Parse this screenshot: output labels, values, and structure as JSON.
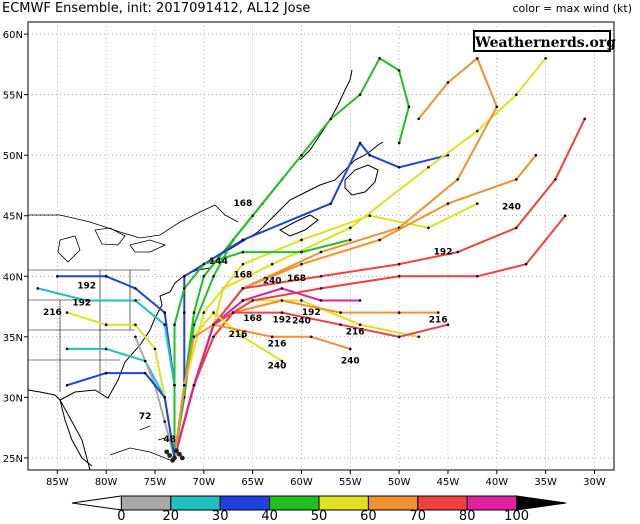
{
  "header": {
    "title": "ECMWF Ensemble, init: 2017091412, AL12 Jose",
    "subtitle_right": "color = max wind (kt)"
  },
  "brand": {
    "label": "Weathernerds.org"
  },
  "axes": {
    "lat_labels": [
      "60N",
      "55N",
      "50N",
      "45N",
      "40N",
      "35N",
      "30N",
      "25N"
    ],
    "lon_labels": [
      "85W",
      "80W",
      "75W",
      "70W",
      "65W",
      "60W",
      "55W",
      "50W",
      "45W",
      "40W",
      "35W",
      "30W"
    ]
  },
  "colorbar": {
    "ticks": [
      "0",
      "20",
      "30",
      "40",
      "50",
      "60",
      "70",
      "80",
      "100"
    ],
    "colors": [
      "#ffffff",
      "#a8a8a8",
      "#20c0c0",
      "#2040e0",
      "#20c020",
      "#e0e020",
      "#f09030",
      "#f04040",
      "#e020a0",
      "#000000"
    ]
  },
  "map": {
    "lon_range": [
      -88,
      -28
    ],
    "lat_range": [
      24,
      61
    ],
    "grid": true
  },
  "forecast_hour_labels": [
    {
      "text": "216",
      "lon": -85.5,
      "lat": 36.8
    },
    {
      "text": "192",
      "lon": -82.0,
      "lat": 39.0
    },
    {
      "text": "192",
      "lon": -82.5,
      "lat": 37.6
    },
    {
      "text": "168",
      "lon": -66.0,
      "lat": 45.8
    },
    {
      "text": "144",
      "lon": -68.5,
      "lat": 41.0
    },
    {
      "text": "168",
      "lon": -66.0,
      "lat": 39.9
    },
    {
      "text": "240",
      "lon": -63.0,
      "lat": 39.4
    },
    {
      "text": "168",
      "lon": -60.5,
      "lat": 39.6
    },
    {
      "text": "192",
      "lon": -59.0,
      "lat": 36.8
    },
    {
      "text": "240",
      "lon": -60.0,
      "lat": 36.1
    },
    {
      "text": "192",
      "lon": -62.0,
      "lat": 36.2
    },
    {
      "text": "168",
      "lon": -65.0,
      "lat": 36.3
    },
    {
      "text": "216",
      "lon": -66.5,
      "lat": 35.0
    },
    {
      "text": "216",
      "lon": -62.5,
      "lat": 34.2
    },
    {
      "text": "216",
      "lon": -54.5,
      "lat": 35.2
    },
    {
      "text": "240",
      "lon": -55.0,
      "lat": 32.8
    },
    {
      "text": "240",
      "lon": -62.5,
      "lat": 32.4
    },
    {
      "text": "216",
      "lon": -46.0,
      "lat": 36.2
    },
    {
      "text": "192",
      "lon": -45.5,
      "lat": 41.8
    },
    {
      "text": "240",
      "lon": -38.5,
      "lat": 45.5
    },
    {
      "text": "72",
      "lon": -76.0,
      "lat": 28.2
    },
    {
      "text": "48",
      "lon": -73.5,
      "lat": 26.3
    }
  ],
  "tracks": [
    {
      "color": "#20c020",
      "points": [
        [
          -73,
          25
        ],
        [
          -72,
          30
        ],
        [
          -71,
          36
        ],
        [
          -69,
          40
        ],
        [
          -67,
          43
        ],
        [
          -64,
          46
        ],
        [
          -62,
          48
        ]
      ]
    },
    {
      "color": "#20c020",
      "points": [
        [
          -73,
          25
        ],
        [
          -72,
          31
        ],
        [
          -71,
          37
        ],
        [
          -70,
          40
        ],
        [
          -65,
          45
        ],
        [
          -60,
          50
        ],
        [
          -57,
          53
        ],
        [
          -54,
          55
        ],
        [
          -52,
          58
        ],
        [
          -50,
          57
        ],
        [
          -49,
          54
        ],
        [
          -50,
          51
        ]
      ]
    },
    {
      "color": "#2040e0",
      "points": [
        [
          -73,
          25
        ],
        [
          -72,
          31
        ],
        [
          -72,
          37
        ],
        [
          -72,
          40
        ],
        [
          -66,
          43
        ],
        [
          -57,
          46
        ],
        [
          -54,
          51
        ],
        [
          -53,
          50
        ],
        [
          -50,
          49
        ],
        [
          -45,
          50
        ]
      ]
    },
    {
      "color": "#2040e0",
      "points": [
        [
          -73,
          25
        ],
        [
          -73,
          31
        ],
        [
          -74,
          37
        ],
        [
          -77,
          39
        ],
        [
          -80,
          40
        ],
        [
          -85,
          40
        ]
      ]
    },
    {
      "color": "#20c0c0",
      "points": [
        [
          -73,
          25
        ],
        [
          -73,
          31
        ],
        [
          -74,
          36
        ],
        [
          -77,
          38
        ],
        [
          -82,
          38
        ],
        [
          -87,
          39
        ]
      ]
    },
    {
      "color": "#20c0c0",
      "points": [
        [
          -73,
          25
        ],
        [
          -74,
          30
        ],
        [
          -76,
          33
        ],
        [
          -80,
          34
        ],
        [
          -84,
          34
        ]
      ]
    },
    {
      "color": "#e0e020",
      "points": [
        [
          -73,
          25
        ],
        [
          -71,
          31
        ],
        [
          -69,
          36
        ],
        [
          -68,
          39
        ],
        [
          -63,
          41
        ],
        [
          -55,
          44
        ],
        [
          -47,
          49
        ],
        [
          -42,
          52
        ],
        [
          -38,
          55
        ],
        [
          -35,
          58
        ]
      ]
    },
    {
      "color": "#e0e020",
      "points": [
        [
          -73,
          25
        ],
        [
          -71,
          31
        ],
        [
          -69,
          36
        ],
        [
          -66,
          38
        ],
        [
          -60,
          38
        ],
        [
          -54,
          36
        ],
        [
          -48,
          35
        ]
      ]
    },
    {
      "color": "#e0e020",
      "points": [
        [
          -73,
          25
        ],
        [
          -72,
          31
        ],
        [
          -70,
          37
        ],
        [
          -66,
          41
        ],
        [
          -60,
          43
        ],
        [
          -53,
          45
        ],
        [
          -47,
          44
        ],
        [
          -42,
          46
        ]
      ]
    },
    {
      "color": "#f09030",
      "points": [
        [
          -73,
          25
        ],
        [
          -71,
          31
        ],
        [
          -69,
          36
        ],
        [
          -66,
          39
        ],
        [
          -58,
          42
        ],
        [
          -50,
          44
        ],
        [
          -44,
          48
        ],
        [
          -40,
          54
        ],
        [
          -42,
          58
        ],
        [
          -45,
          56
        ],
        [
          -48,
          53
        ]
      ]
    },
    {
      "color": "#f09030",
      "points": [
        [
          -73,
          25
        ],
        [
          -71,
          31
        ],
        [
          -69,
          36
        ],
        [
          -66,
          39
        ],
        [
          -60,
          41
        ],
        [
          -52,
          43
        ],
        [
          -45,
          46
        ],
        [
          -38,
          48
        ],
        [
          -36,
          50
        ]
      ]
    },
    {
      "color": "#f09030",
      "points": [
        [
          -73,
          25
        ],
        [
          -71,
          31
        ],
        [
          -69,
          35
        ],
        [
          -67,
          37
        ],
        [
          -62,
          38
        ],
        [
          -56,
          37
        ],
        [
          -50,
          37
        ],
        [
          -46,
          37
        ]
      ]
    },
    {
      "color": "#f04040",
      "points": [
        [
          -73,
          25
        ],
        [
          -71,
          31
        ],
        [
          -69,
          36
        ],
        [
          -66,
          39
        ],
        [
          -58,
          40
        ],
        [
          -50,
          41
        ],
        [
          -44,
          42
        ],
        [
          -38,
          44
        ],
        [
          -34,
          48
        ],
        [
          -31,
          53
        ]
      ]
    },
    {
      "color": "#f04040",
      "points": [
        [
          -73,
          25
        ],
        [
          -71,
          31
        ],
        [
          -69,
          36
        ],
        [
          -65,
          38
        ],
        [
          -58,
          39
        ],
        [
          -50,
          40
        ],
        [
          -42,
          40
        ],
        [
          -37,
          41
        ],
        [
          -33,
          45
        ]
      ]
    },
    {
      "color": "#f04040",
      "points": [
        [
          -73,
          25
        ],
        [
          -71,
          31
        ],
        [
          -69,
          35
        ],
        [
          -67,
          37
        ],
        [
          -62,
          37
        ],
        [
          -56,
          36
        ],
        [
          -50,
          35
        ],
        [
          -45,
          36
        ]
      ]
    },
    {
      "color": "#e020a0",
      "points": [
        [
          -73,
          25
        ],
        [
          -71,
          31
        ],
        [
          -69,
          36
        ],
        [
          -66,
          38
        ],
        [
          -62,
          39
        ],
        [
          -58,
          38
        ],
        [
          -54,
          38
        ]
      ]
    },
    {
      "color": "#e0e020",
      "points": [
        [
          -73,
          25
        ],
        [
          -72,
          31
        ],
        [
          -71,
          35
        ],
        [
          -69,
          37
        ],
        [
          -66,
          35
        ],
        [
          -62,
          33
        ]
      ]
    },
    {
      "color": "#f09030",
      "points": [
        [
          -73,
          25
        ],
        [
          -72,
          31
        ],
        [
          -71,
          35
        ],
        [
          -69,
          36
        ],
        [
          -63,
          35
        ],
        [
          -59,
          35
        ],
        [
          -55,
          34
        ]
      ]
    },
    {
      "color": "#20c020",
      "points": [
        [
          -73,
          25
        ],
        [
          -73,
          31
        ],
        [
          -73,
          36
        ],
        [
          -72,
          39
        ],
        [
          -70,
          41
        ],
        [
          -66,
          42
        ],
        [
          -60,
          42
        ],
        [
          -55,
          43
        ]
      ]
    },
    {
      "color": "#a8a8a8",
      "points": [
        [
          -73,
          25
        ],
        [
          -74,
          28
        ],
        [
          -75,
          31
        ],
        [
          -76,
          33
        ],
        [
          -77,
          35
        ]
      ]
    },
    {
      "color": "#e0e020",
      "points": [
        [
          -73,
          25
        ],
        [
          -74,
          30
        ],
        [
          -75,
          34
        ],
        [
          -77,
          36
        ],
        [
          -80,
          36
        ],
        [
          -84,
          37
        ]
      ]
    },
    {
      "color": "#2040e0",
      "points": [
        [
          -73,
          25
        ],
        [
          -74,
          30
        ],
        [
          -76,
          32
        ],
        [
          -80,
          32
        ],
        [
          -84,
          31
        ]
      ]
    }
  ]
}
